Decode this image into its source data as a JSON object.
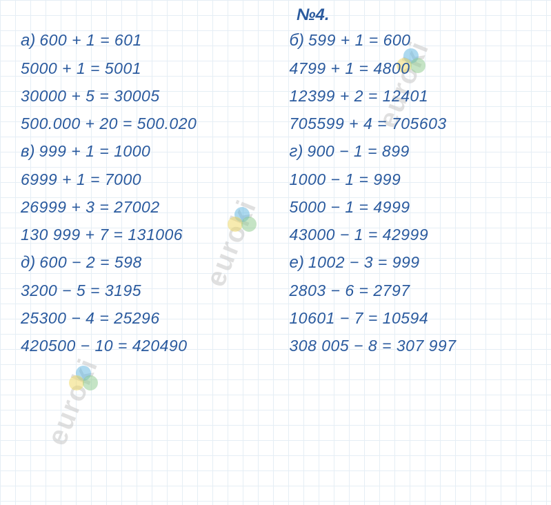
{
  "title": "№4.",
  "watermark_text": "euroki",
  "text_color": "#2a5a9e",
  "grid_color": "#d4e4f0",
  "background_color": "#ffffff",
  "watermark_color": "#c8c8c8",
  "logo_colors": {
    "blue": "#5bb4e0",
    "yellow": "#f0d860",
    "green": "#8bc98b"
  },
  "left_column": [
    {
      "label": "а)",
      "eq": "600 + 1 = 601"
    },
    {
      "label": "",
      "eq": "5000 + 1 = 5001"
    },
    {
      "label": "",
      "eq": "30000 + 5 = 30005"
    },
    {
      "label": "",
      "eq": "500.000 + 20 = 500.020"
    },
    {
      "label": "в)",
      "eq": "999 + 1 = 1000"
    },
    {
      "label": "",
      "eq": "6999 + 1 = 7000"
    },
    {
      "label": "",
      "eq": "26999 + 3 = 27002"
    },
    {
      "label": "",
      "eq": "130 999 + 7 = 131006"
    },
    {
      "label": "д)",
      "eq": "600 − 2 = 598"
    },
    {
      "label": "",
      "eq": "3200 − 5 = 3195"
    },
    {
      "label": "",
      "eq": "25300 − 4 = 25296"
    },
    {
      "label": "",
      "eq": "420500 − 10 = 420490"
    }
  ],
  "right_column": [
    {
      "label": "б)",
      "eq": "599 + 1 = 600"
    },
    {
      "label": "",
      "eq": "4799 + 1 = 4800"
    },
    {
      "label": "",
      "eq": "12399 + 2 = 12401"
    },
    {
      "label": "",
      "eq": "705599 + 4 = 705603"
    },
    {
      "label": "г)",
      "eq": "900 − 1 = 899"
    },
    {
      "label": "",
      "eq": "1000 − 1 = 999"
    },
    {
      "label": "",
      "eq": "5000 − 1 = 4999"
    },
    {
      "label": "",
      "eq": "43000 − 1 = 42999"
    },
    {
      "label": "е)",
      "eq": "1002 − 3 = 999"
    },
    {
      "label": "",
      "eq": "2803 − 6 = 2797"
    },
    {
      "label": "",
      "eq": "10601 − 7 = 10594"
    },
    {
      "label": "",
      "eq": "308 005 − 8 = 307 997"
    }
  ]
}
